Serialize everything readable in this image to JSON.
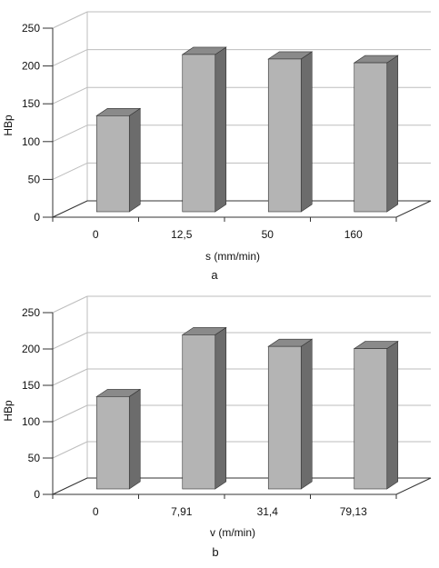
{
  "colors": {
    "bar_front": "#b4b4b4",
    "bar_side": "#6c6c6c",
    "bar_top": "#8a8a8a",
    "grid": "#bdbdbd",
    "axis": "#333333"
  },
  "chart_data": [
    {
      "type": "bar",
      "style": "3d",
      "caption": "a",
      "xlabel": "s (mm/min)",
      "ylabel": "HBp",
      "ylim": [
        0,
        250
      ],
      "yticks": [
        "0",
        "50",
        "100",
        "150",
        "200",
        "250"
      ],
      "categories": [
        "0",
        "12,5",
        "50",
        "160"
      ],
      "values": [
        127,
        208,
        202,
        197
      ],
      "grid": true
    },
    {
      "type": "bar",
      "style": "3d",
      "caption": "b",
      "xlabel": "v (m/min)",
      "ylabel": "HBp",
      "ylim": [
        0,
        250
      ],
      "yticks": [
        "0",
        "50",
        "100",
        "150",
        "200",
        "250"
      ],
      "categories": [
        "0",
        "7,91",
        "31,4",
        "79,13"
      ],
      "values": [
        127,
        212,
        196,
        193
      ],
      "grid": true
    }
  ]
}
